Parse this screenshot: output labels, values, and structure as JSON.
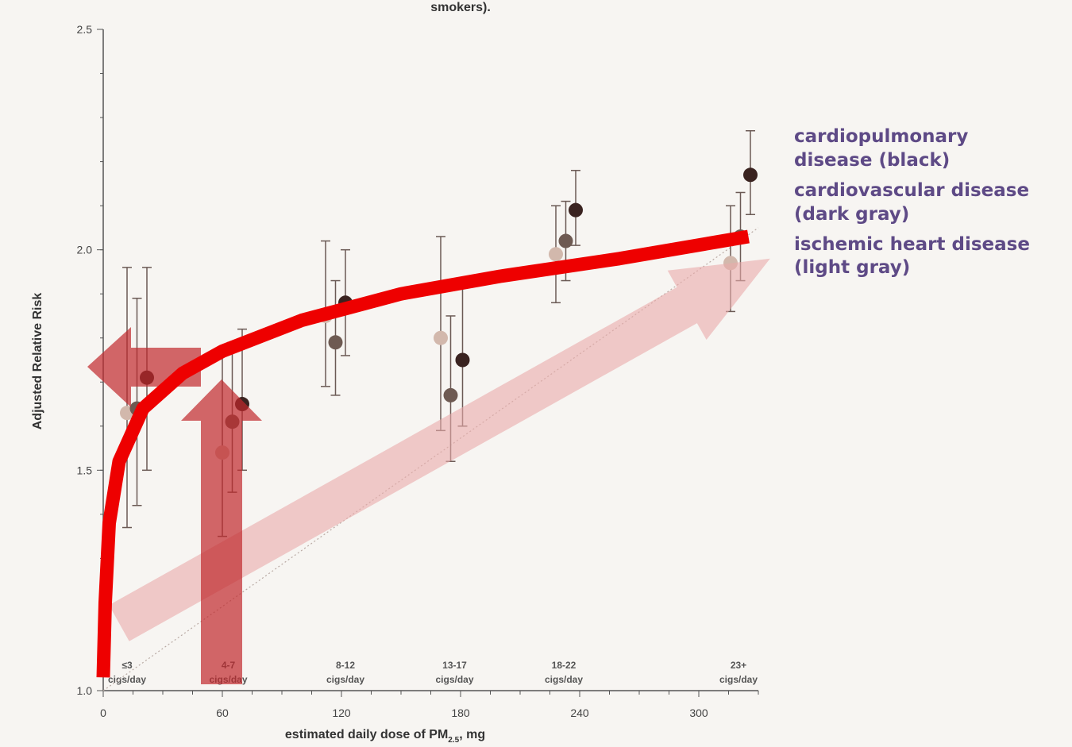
{
  "chart_data": {
    "type": "scatter",
    "title": "smokers).",
    "xlabel": "estimated daily dose of PM2.5, mg",
    "xlabel_main": "estimated daily dose of PM",
    "xlabel_sub": "2.5",
    "xlabel_tail": ", mg",
    "ylabel": "Adjusted Relative Risk",
    "xlim": [
      0,
      330
    ],
    "ylim": [
      1.0,
      2.5
    ],
    "x_ticks": [
      0,
      60,
      120,
      180,
      240,
      300
    ],
    "y_ticks": [
      1.0,
      1.5,
      2.0,
      2.5
    ],
    "y_tick_labels": [
      "1.0",
      "1.5",
      "2.0",
      "2.5"
    ],
    "categories": [
      {
        "x": 12,
        "line1": "≤3",
        "line2": "cigs/day"
      },
      {
        "x": 63,
        "line1": "4-7",
        "line2": "cigs/day"
      },
      {
        "x": 122,
        "line1": "8-12",
        "line2": "cigs/day"
      },
      {
        "x": 177,
        "line1": "13-17",
        "line2": "cigs/day"
      },
      {
        "x": 232,
        "line1": "18-22",
        "line2": "cigs/day"
      },
      {
        "x": 320,
        "line1": "23+",
        "line2": "cigs/day"
      }
    ],
    "series": [
      {
        "name": "ischemic heart disease",
        "color": "#d2b8ac",
        "points": [
          {
            "x": 12,
            "y": 1.63,
            "lo": 1.37,
            "hi": 1.96
          },
          {
            "x": 60,
            "y": 1.54,
            "lo": 1.35,
            "hi": 1.77
          },
          {
            "x": 112,
            "y": 1.85,
            "lo": 1.69,
            "hi": 2.02
          },
          {
            "x": 170,
            "y": 1.8,
            "lo": 1.59,
            "hi": 2.03
          },
          {
            "x": 228,
            "y": 1.99,
            "lo": 1.88,
            "hi": 2.1
          },
          {
            "x": 316,
            "y": 1.97,
            "lo": 1.86,
            "hi": 2.1
          }
        ]
      },
      {
        "name": "cardiovascular disease",
        "color": "#6e5a52",
        "points": [
          {
            "x": 17,
            "y": 1.64,
            "lo": 1.42,
            "hi": 1.89
          },
          {
            "x": 65,
            "y": 1.61,
            "lo": 1.45,
            "hi": 1.79
          },
          {
            "x": 117,
            "y": 1.79,
            "lo": 1.67,
            "hi": 1.93
          },
          {
            "x": 175,
            "y": 1.67,
            "lo": 1.52,
            "hi": 1.85
          },
          {
            "x": 233,
            "y": 2.02,
            "lo": 1.93,
            "hi": 2.11
          },
          {
            "x": 321,
            "y": 2.03,
            "lo": 1.93,
            "hi": 2.13
          }
        ]
      },
      {
        "name": "cardiopulmonary disease",
        "color": "#3a2320",
        "points": [
          {
            "x": 22,
            "y": 1.71,
            "lo": 1.5,
            "hi": 1.96
          },
          {
            "x": 70,
            "y": 1.65,
            "lo": 1.5,
            "hi": 1.82
          },
          {
            "x": 122,
            "y": 1.88,
            "lo": 1.76,
            "hi": 2.0
          },
          {
            "x": 181,
            "y": 1.75,
            "lo": 1.6,
            "hi": 1.92
          },
          {
            "x": 238,
            "y": 2.09,
            "lo": 2.01,
            "hi": 2.18
          },
          {
            "x": 326,
            "y": 2.17,
            "lo": 2.08,
            "hi": 2.27
          }
        ]
      }
    ],
    "trend_curve": [
      {
        "x": 0,
        "y": 1.03
      },
      {
        "x": 1,
        "y": 1.2
      },
      {
        "x": 3,
        "y": 1.38
      },
      {
        "x": 8,
        "y": 1.52
      },
      {
        "x": 20,
        "y": 1.64
      },
      {
        "x": 40,
        "y": 1.72
      },
      {
        "x": 60,
        "y": 1.77
      },
      {
        "x": 100,
        "y": 1.84
      },
      {
        "x": 150,
        "y": 1.9
      },
      {
        "x": 200,
        "y": 1.94
      },
      {
        "x": 260,
        "y": 1.98
      },
      {
        "x": 325,
        "y": 2.03
      }
    ],
    "grid": false,
    "legend_position": "right"
  },
  "legend": [
    {
      "line1": "cardiopulmonary",
      "line2": "disease (black)"
    },
    {
      "line1": "cardiovascular disease",
      "line2": "(dark gray)"
    },
    {
      "line1": "ischemic heart disease",
      "line2": "(light gray)"
    }
  ],
  "annotation_colors": {
    "curve": "#ee0000",
    "arrow_dark": "#c0282c",
    "arrow_light": "#e9aaaa"
  }
}
